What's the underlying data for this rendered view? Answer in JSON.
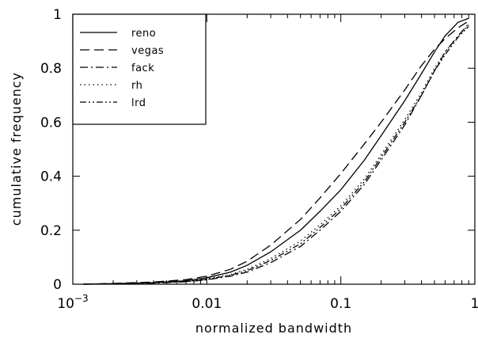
{
  "chart_data": {
    "type": "line",
    "title": "",
    "xlabel": "normalized bandwidth",
    "ylabel": "cumulative frequency",
    "xscale": "log",
    "xlim": [
      0.001,
      1
    ],
    "ylim": [
      0,
      1
    ],
    "x_ticks": [
      0.001,
      0.01,
      0.1,
      1
    ],
    "x_tick_labels": [
      {
        "base": "10",
        "exp": "−3"
      },
      {
        "text": "0.01"
      },
      {
        "text": "0.1"
      },
      {
        "text": "1"
      }
    ],
    "y_ticks": [
      0,
      0.2,
      0.4,
      0.6,
      0.8,
      1
    ],
    "y_tick_labels": [
      "0",
      "0.2",
      "0.4",
      "0.6",
      "0.8",
      "1"
    ],
    "grid": false,
    "legend_position": "top-left",
    "series": [
      {
        "name": "reno",
        "style": "solid",
        "points": [
          [
            0.0012,
            0
          ],
          [
            0.002,
            0.002
          ],
          [
            0.004,
            0.006
          ],
          [
            0.007,
            0.013
          ],
          [
            0.01,
            0.024
          ],
          [
            0.015,
            0.045
          ],
          [
            0.02,
            0.07
          ],
          [
            0.03,
            0.12
          ],
          [
            0.05,
            0.2
          ],
          [
            0.07,
            0.27
          ],
          [
            0.1,
            0.35
          ],
          [
            0.15,
            0.46
          ],
          [
            0.2,
            0.55
          ],
          [
            0.3,
            0.68
          ],
          [
            0.4,
            0.78
          ],
          [
            0.5,
            0.86
          ],
          [
            0.6,
            0.92
          ],
          [
            0.75,
            0.97
          ],
          [
            0.9,
            0.985
          ]
        ]
      },
      {
        "name": "vegas",
        "style": "dashed",
        "points": [
          [
            0.0012,
            0
          ],
          [
            0.002,
            0.003
          ],
          [
            0.004,
            0.008
          ],
          [
            0.007,
            0.017
          ],
          [
            0.01,
            0.03
          ],
          [
            0.015,
            0.055
          ],
          [
            0.02,
            0.085
          ],
          [
            0.03,
            0.145
          ],
          [
            0.05,
            0.24
          ],
          [
            0.07,
            0.32
          ],
          [
            0.1,
            0.41
          ],
          [
            0.15,
            0.52
          ],
          [
            0.2,
            0.6
          ],
          [
            0.3,
            0.72
          ],
          [
            0.4,
            0.81
          ],
          [
            0.5,
            0.87
          ],
          [
            0.6,
            0.91
          ],
          [
            0.75,
            0.95
          ],
          [
            0.9,
            0.975
          ]
        ]
      },
      {
        "name": "fack",
        "style": "dashdot",
        "points": [
          [
            0.0012,
            0
          ],
          [
            0.002,
            0.001
          ],
          [
            0.004,
            0.004
          ],
          [
            0.007,
            0.009
          ],
          [
            0.01,
            0.016
          ],
          [
            0.015,
            0.03
          ],
          [
            0.02,
            0.045
          ],
          [
            0.03,
            0.08
          ],
          [
            0.05,
            0.14
          ],
          [
            0.07,
            0.2
          ],
          [
            0.1,
            0.27
          ],
          [
            0.15,
            0.37
          ],
          [
            0.2,
            0.46
          ],
          [
            0.3,
            0.59
          ],
          [
            0.4,
            0.7
          ],
          [
            0.5,
            0.79
          ],
          [
            0.6,
            0.86
          ],
          [
            0.75,
            0.92
          ],
          [
            0.9,
            0.965
          ]
        ]
      },
      {
        "name": "rh",
        "style": "dotted",
        "points": [
          [
            0.0012,
            0
          ],
          [
            0.002,
            0.002
          ],
          [
            0.004,
            0.005
          ],
          [
            0.007,
            0.011
          ],
          [
            0.01,
            0.02
          ],
          [
            0.015,
            0.036
          ],
          [
            0.02,
            0.055
          ],
          [
            0.03,
            0.095
          ],
          [
            0.05,
            0.16
          ],
          [
            0.07,
            0.22
          ],
          [
            0.1,
            0.29
          ],
          [
            0.15,
            0.39
          ],
          [
            0.2,
            0.48
          ],
          [
            0.3,
            0.61
          ],
          [
            0.4,
            0.71
          ],
          [
            0.5,
            0.8
          ],
          [
            0.6,
            0.86
          ],
          [
            0.75,
            0.92
          ],
          [
            0.9,
            0.96
          ]
        ]
      },
      {
        "name": "lrd",
        "style": "dashdotdot",
        "points": [
          [
            0.0012,
            0
          ],
          [
            0.002,
            0.0015
          ],
          [
            0.004,
            0.0045
          ],
          [
            0.007,
            0.01
          ],
          [
            0.01,
            0.018
          ],
          [
            0.015,
            0.033
          ],
          [
            0.02,
            0.05
          ],
          [
            0.03,
            0.088
          ],
          [
            0.05,
            0.15
          ],
          [
            0.07,
            0.21
          ],
          [
            0.1,
            0.28
          ],
          [
            0.15,
            0.38
          ],
          [
            0.2,
            0.47
          ],
          [
            0.3,
            0.6
          ],
          [
            0.4,
            0.7
          ],
          [
            0.5,
            0.79
          ],
          [
            0.6,
            0.85
          ],
          [
            0.75,
            0.915
          ],
          [
            0.9,
            0.955
          ]
        ]
      }
    ]
  }
}
